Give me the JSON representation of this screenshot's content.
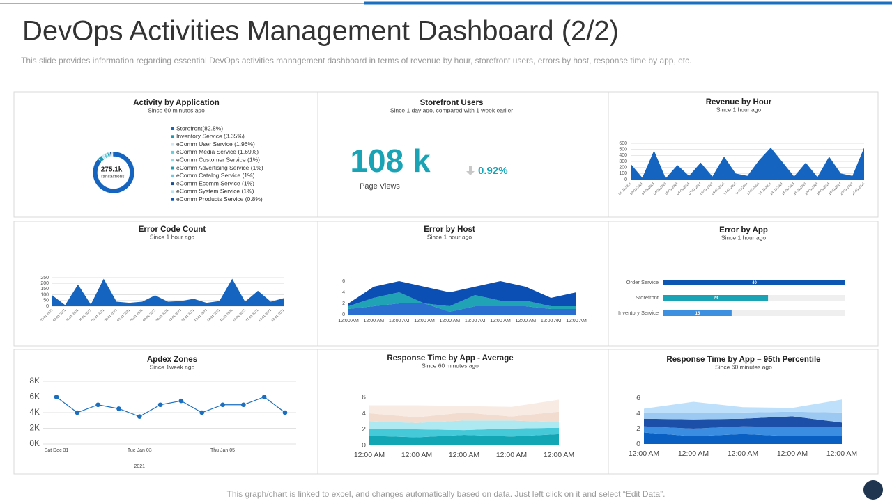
{
  "header": {
    "title": "DevOps Activities Management Dashboard (2/2)",
    "subtitle": "This slide provides information regarding essential DevOps activities management dashboard in terms of revenue by hour, storefront users, errors by host, response time by app, etc."
  },
  "footer": "This graph/chart is linked to excel, and changes automatically based on data. Just left click on it and select “Edit Data”.",
  "chart_data": [
    {
      "type": "donut",
      "title": "Activity by Application",
      "subtitle": "Since 60 minutes ago",
      "center_value": "275.1k",
      "center_label": "Transactions",
      "categories": [
        "Storefront(82.8%)",
        "Inventory Service (3.35%)",
        "eComm User Service (1.96%)",
        "eComm Media Service (1.69%)",
        "eComm Customer Service (1%)",
        "eComm Advertising Service (1%)",
        "eComm Catalog Service (1%)",
        "eComm Ecomm Service (1%)",
        "eComm System Service (1%)",
        "eComm Products Service (0.8%)"
      ],
      "values": [
        82.8,
        3.35,
        1.96,
        1.69,
        1,
        1,
        1,
        1,
        1,
        0.8
      ],
      "colors": [
        "#1565c0",
        "#1a9bb5",
        "#cfe8f7",
        "#5fd0dc",
        "#8edbe8",
        "#14a0b0",
        "#6ec6e6",
        "#1f4f8f",
        "#b8e3f0",
        "#0d57b3"
      ]
    },
    {
      "type": "kpi",
      "title": "Storefront Users",
      "subtitle": "Since 1 day ago, compared with 1 week earlier",
      "value": "108 k",
      "label": "Page Views",
      "change": "0.92%",
      "color": "#1aa3b5"
    },
    {
      "type": "area",
      "title": "Revenue by Hour",
      "subtitle": "Since 1 hour ago",
      "categories": [
        "01-01-2021",
        "02-01-2021",
        "03-01-2021",
        "04-01-2021",
        "05-01-2021",
        "06-01-2021",
        "07-01-2021",
        "08-01-2021",
        "09-01-2021",
        "10-01-2021",
        "11-01-2021",
        "12-01-2021",
        "13-01-2021",
        "14-01-2021",
        "15-01-2021",
        "16-01-2021",
        "17-01-2021",
        "18-01-2021",
        "19-01-2021",
        "20-01-2021",
        "21-01-2021"
      ],
      "values": [
        260,
        30,
        480,
        20,
        240,
        60,
        280,
        50,
        380,
        100,
        60,
        320,
        530,
        290,
        50,
        280,
        40,
        380,
        100,
        60,
        530
      ],
      "color": "#1565c0",
      "ylim": [
        0,
        600
      ],
      "yticks": [
        0,
        100,
        200,
        300,
        400,
        500,
        600
      ],
      "grid": true
    },
    {
      "type": "area",
      "title": "Error Code Count",
      "subtitle": "Since 1 hour ago",
      "categories": [
        "01-01-2021",
        "02-01-2021",
        "03-01-2021",
        "04-01-2021",
        "05-01-2021",
        "06-01-2021",
        "07-01-2021",
        "08-01-2021",
        "09-01-2021",
        "10-01-2021",
        "11-01-2021",
        "12-01-2021",
        "13-01-2021",
        "14-01-2021",
        "15-01-2021",
        "16-01-2021",
        "17-01-2021",
        "18-01-2021",
        "19-01-2021"
      ],
      "values": [
        95,
        10,
        190,
        15,
        240,
        40,
        30,
        40,
        95,
        40,
        45,
        65,
        30,
        45,
        240,
        40,
        135,
        40,
        70
      ],
      "color": "#1565c0",
      "ylim": [
        0,
        250
      ],
      "yticks": [
        0,
        50,
        100,
        150,
        200,
        250
      ],
      "grid": true
    },
    {
      "type": "stacked_area",
      "title": "Error by Host",
      "subtitle": "Since 1 hour ago",
      "categories": [
        "12:00 AM",
        "12:00 AM",
        "12:00 AM",
        "12:00 AM",
        "12:00 AM",
        "12:00 AM",
        "12:00 AM",
        "12:00 AM",
        "12:00 AM",
        "12:00 AM"
      ],
      "series": [
        {
          "color": "#2a6fd0",
          "values": [
            1,
            1.5,
            2,
            2,
            0.5,
            1.5,
            1.5,
            1.5,
            1,
            1
          ]
        },
        {
          "color": "#1fa3b5",
          "values": [
            0.5,
            1.5,
            2,
            0,
            1,
            2,
            1,
            1,
            0.5,
            0.5
          ]
        },
        {
          "color": "#0b4fb5",
          "values": [
            0.5,
            2,
            2,
            3,
            2.5,
            1.5,
            3.5,
            2.5,
            1.5,
            2.5
          ]
        }
      ],
      "ylim": [
        0,
        6
      ],
      "yticks": [
        0,
        2,
        4,
        6
      ],
      "grid": false
    },
    {
      "type": "hbar",
      "title": "Error by App",
      "subtitle": "Since 1 hour ago",
      "categories": [
        "Order Service",
        "Storefront",
        "Inventory Service"
      ],
      "values": [
        40,
        23,
        15
      ],
      "colors": [
        "#0d57b3",
        "#1aa3b5",
        "#3d8fe0"
      ],
      "xlim": [
        0,
        40
      ]
    },
    {
      "type": "line",
      "title": "Apdex Zones",
      "subtitle": "Since 1week ago",
      "categories": [
        "Sat Dec 31",
        null,
        null,
        null,
        "Tue Jan 03",
        null,
        null,
        null,
        "Thu Jan 05",
        null,
        null,
        null
      ],
      "x_sublabel": "2021",
      "values": [
        6000,
        4000,
        5000,
        4500,
        3500,
        5000,
        5500,
        4000,
        5000,
        5000,
        6000,
        4000
      ],
      "color": "#1a6fc0",
      "ylim": [
        0,
        8000
      ],
      "yticks": [
        {
          "value": 0,
          "label": "0K"
        },
        {
          "value": 2000,
          "label": "2K"
        },
        {
          "value": 4000,
          "label": "4K"
        },
        {
          "value": 6000,
          "label": "6K"
        },
        {
          "value": 8000,
          "label": "8K"
        }
      ],
      "grid": true
    },
    {
      "type": "stacked_area",
      "title": "Response Time by App - Average",
      "subtitle": "Since 60 minutes ago",
      "categories": [
        "12:00 AM",
        "12:00 AM",
        "12:00 AM",
        "12:00 AM",
        "12:00 AM"
      ],
      "series": [
        {
          "color": "#12a6b5",
          "values": [
            1.2,
            1,
            1.3,
            1.1,
            1.4
          ]
        },
        {
          "color": "#45c8d8",
          "values": [
            0.8,
            1,
            0.6,
            1,
            0.8
          ]
        },
        {
          "color": "#aee8f0",
          "values": [
            1,
            0.8,
            1.2,
            1,
            0.7
          ]
        },
        {
          "color": "#f2dccf",
          "values": [
            1,
            0.7,
            1,
            0.5,
            1.3
          ]
        },
        {
          "color": "#f8ebe4",
          "values": [
            1,
            1.5,
            0.8,
            1.2,
            1.5
          ]
        }
      ],
      "ylim": [
        0,
        6
      ],
      "yticks": [
        0,
        2,
        4,
        6
      ],
      "grid": false
    },
    {
      "type": "stacked_area",
      "title": "Response Time by App – 95th Percentile",
      "subtitle": "Since 60 minutes ago",
      "categories": [
        "12:00 AM",
        "12:00 AM",
        "12:00 AM",
        "12:00 AM",
        "12:00 AM"
      ],
      "series": [
        {
          "color": "#0a5fc2",
          "values": [
            1.5,
            1,
            1.3,
            1,
            1
          ]
        },
        {
          "color": "#3a8de0",
          "values": [
            0.8,
            1,
            1,
            1.2,
            1.2
          ]
        },
        {
          "color": "#1b4fa8",
          "values": [
            1,
            1.2,
            1,
            1.4,
            0.6
          ]
        },
        {
          "color": "#9cc9f2",
          "values": [
            0.8,
            0.8,
            0.8,
            0.6,
            1.3
          ]
        },
        {
          "color": "#bfe0fa",
          "values": [
            0.5,
            1.5,
            0.7,
            0.5,
            1.7
          ]
        }
      ],
      "ylim": [
        0,
        6
      ],
      "yticks": [
        0,
        2,
        4,
        6
      ],
      "grid": false
    }
  ]
}
